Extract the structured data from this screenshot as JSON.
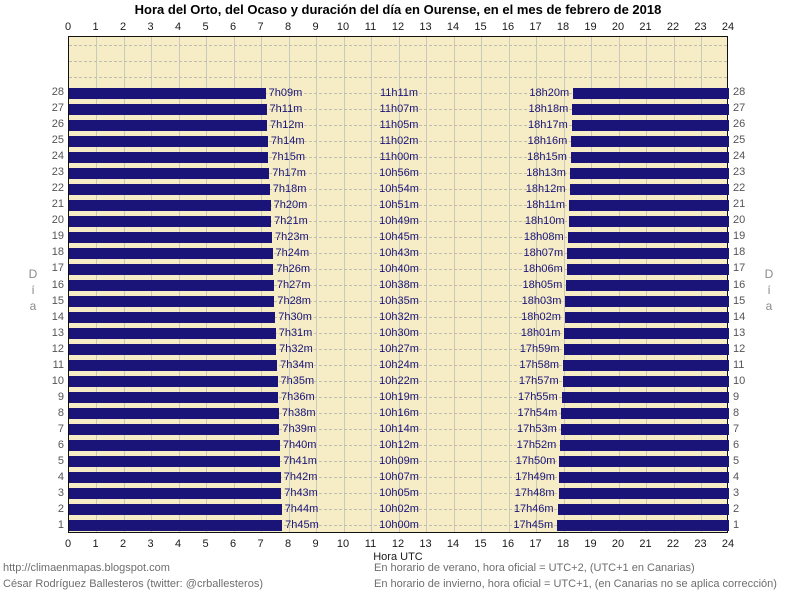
{
  "title": "Hora del Orto, del Ocaso y duración del día en Ourense, en el mes de febrero de 2018",
  "axis": {
    "x_ticks": [
      0,
      1,
      2,
      3,
      4,
      5,
      6,
      7,
      8,
      9,
      10,
      11,
      12,
      13,
      14,
      15,
      16,
      17,
      18,
      19,
      20,
      21,
      22,
      23,
      24
    ],
    "xlabel": "Hora UTC",
    "ylabel": "Día"
  },
  "chart_data": {
    "type": "bar",
    "subtype": "horizontal-night-span",
    "title": "Hora del Orto, del Ocaso y duración del día en Ourense, en el mes de febrero de 2018",
    "xlabel": "Hora UTC",
    "ylabel": "Día",
    "xlim": [
      0,
      24
    ],
    "x_tick_step": 1,
    "row_slots": 31,
    "grid": true,
    "columns": [
      "orto",
      "duracion",
      "ocaso"
    ],
    "days": [
      {
        "day": 1,
        "orto": "7h45m",
        "duracion": "10h00m",
        "ocaso": "17h45m"
      },
      {
        "day": 2,
        "orto": "7h44m",
        "duracion": "10h02m",
        "ocaso": "17h46m"
      },
      {
        "day": 3,
        "orto": "7h43m",
        "duracion": "10h05m",
        "ocaso": "17h48m"
      },
      {
        "day": 4,
        "orto": "7h42m",
        "duracion": "10h07m",
        "ocaso": "17h49m"
      },
      {
        "day": 5,
        "orto": "7h41m",
        "duracion": "10h09m",
        "ocaso": "17h50m"
      },
      {
        "day": 6,
        "orto": "7h40m",
        "duracion": "10h12m",
        "ocaso": "17h52m"
      },
      {
        "day": 7,
        "orto": "7h39m",
        "duracion": "10h14m",
        "ocaso": "17h53m"
      },
      {
        "day": 8,
        "orto": "7h38m",
        "duracion": "10h16m",
        "ocaso": "17h54m"
      },
      {
        "day": 9,
        "orto": "7h36m",
        "duracion": "10h19m",
        "ocaso": "17h55m"
      },
      {
        "day": 10,
        "orto": "7h35m",
        "duracion": "10h22m",
        "ocaso": "17h57m"
      },
      {
        "day": 11,
        "orto": "7h34m",
        "duracion": "10h24m",
        "ocaso": "17h58m"
      },
      {
        "day": 12,
        "orto": "7h32m",
        "duracion": "10h27m",
        "ocaso": "17h59m"
      },
      {
        "day": 13,
        "orto": "7h31m",
        "duracion": "10h30m",
        "ocaso": "18h01m"
      },
      {
        "day": 14,
        "orto": "7h30m",
        "duracion": "10h32m",
        "ocaso": "18h02m"
      },
      {
        "day": 15,
        "orto": "7h28m",
        "duracion": "10h35m",
        "ocaso": "18h03m"
      },
      {
        "day": 16,
        "orto": "7h27m",
        "duracion": "10h38m",
        "ocaso": "18h05m"
      },
      {
        "day": 17,
        "orto": "7h26m",
        "duracion": "10h40m",
        "ocaso": "18h06m"
      },
      {
        "day": 18,
        "orto": "7h24m",
        "duracion": "10h43m",
        "ocaso": "18h07m"
      },
      {
        "day": 19,
        "orto": "7h23m",
        "duracion": "10h45m",
        "ocaso": "18h08m"
      },
      {
        "day": 20,
        "orto": "7h21m",
        "duracion": "10h49m",
        "ocaso": "18h10m"
      },
      {
        "day": 21,
        "orto": "7h20m",
        "duracion": "10h51m",
        "ocaso": "18h11m"
      },
      {
        "day": 22,
        "orto": "7h18m",
        "duracion": "10h54m",
        "ocaso": "18h12m"
      },
      {
        "day": 23,
        "orto": "7h17m",
        "duracion": "10h56m",
        "ocaso": "18h13m"
      },
      {
        "day": 24,
        "orto": "7h15m",
        "duracion": "11h00m",
        "ocaso": "18h15m"
      },
      {
        "day": 25,
        "orto": "7h14m",
        "duracion": "11h02m",
        "ocaso": "18h16m"
      },
      {
        "day": 26,
        "orto": "7h12m",
        "duracion": "11h05m",
        "ocaso": "18h17m"
      },
      {
        "day": 27,
        "orto": "7h11m",
        "duracion": "11h07m",
        "ocaso": "18h18m"
      },
      {
        "day": 28,
        "orto": "7h09m",
        "duracion": "11h11m",
        "ocaso": "18h20m"
      }
    ]
  },
  "footer": {
    "left": [
      "http://climaenmapas.blogspot.com",
      "César Rodríguez Ballesteros (twitter: @crballesteros)"
    ],
    "right": [
      "En horario de verano, hora oficial = UTC+2, (UTC+1 en Canarias)",
      "En horario de invierno, hora oficial = UTC+1, (en Canarias no se aplica corrección)"
    ]
  },
  "colors": {
    "bar": "#1a1478",
    "plot_bg": "#f6edc6",
    "grid_line": "#c9c9bd",
    "grid_dash": "#bdbdb0",
    "label": "#1a1478",
    "axis_text": "#1a1a1a",
    "day_text": "#555555",
    "dia_text": "#8a8a8a",
    "footer_text": "#6e6e6e",
    "border": "#111111",
    "page_bg": "#ffffff"
  }
}
